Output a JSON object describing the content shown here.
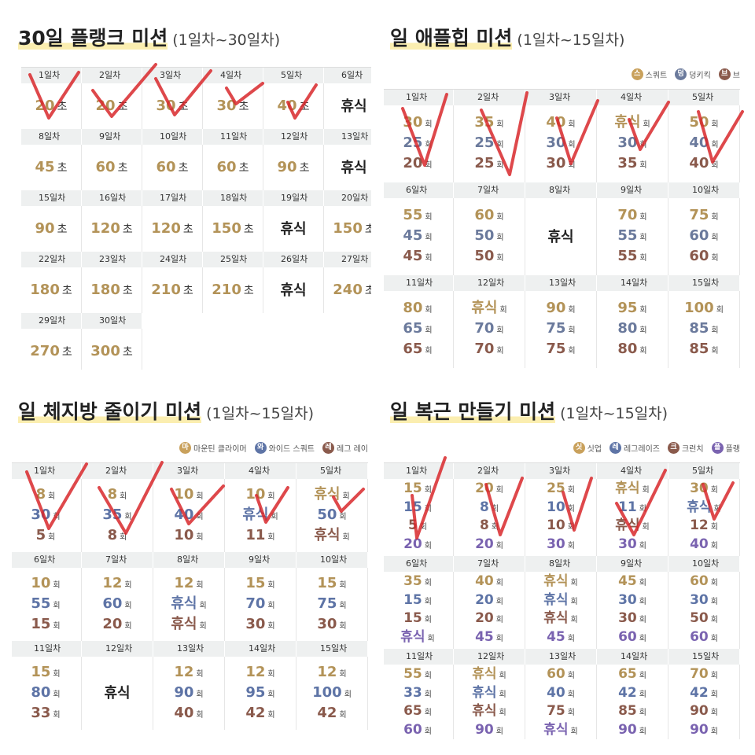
{
  "panels": [
    {
      "title": "30일 플랭크 미션",
      "subtitle": "(1일차~30일차)",
      "unit": "초",
      "row_colors": [
        "#b39358"
      ],
      "days": [
        {
          "label": "1일차",
          "values": [
            20
          ]
        },
        {
          "label": "2일차",
          "values": [
            20
          ]
        },
        {
          "label": "3일차",
          "values": [
            30
          ]
        },
        {
          "label": "4일차",
          "values": [
            30
          ]
        },
        {
          "label": "5일차",
          "values": [
            40
          ]
        },
        {
          "label": "6일차",
          "values": [
            "휴식"
          ]
        },
        {
          "label": "8일차",
          "values": [
            45
          ]
        },
        {
          "label": "9일차",
          "values": [
            60
          ]
        },
        {
          "label": "10일차",
          "values": [
            60
          ]
        },
        {
          "label": "11일차",
          "values": [
            60
          ]
        },
        {
          "label": "12일차",
          "values": [
            90
          ]
        },
        {
          "label": "13일차",
          "values": [
            "휴식"
          ]
        },
        {
          "label": "15일차",
          "values": [
            90
          ]
        },
        {
          "label": "16일차",
          "values": [
            120
          ]
        },
        {
          "label": "17일차",
          "values": [
            120
          ]
        },
        {
          "label": "18일차",
          "values": [
            150
          ]
        },
        {
          "label": "19일차",
          "values": [
            "휴식"
          ]
        },
        {
          "label": "20일차",
          "values": [
            150
          ]
        },
        {
          "label": "22일차",
          "values": [
            180
          ]
        },
        {
          "label": "23일차",
          "values": [
            180
          ]
        },
        {
          "label": "24일차",
          "values": [
            210
          ]
        },
        {
          "label": "25일차",
          "values": [
            210
          ]
        },
        {
          "label": "26일차",
          "values": [
            "휴식"
          ]
        },
        {
          "label": "27일차",
          "values": [
            240
          ]
        },
        {
          "label": "29일차",
          "values": [
            270
          ]
        },
        {
          "label": "30일차",
          "values": [
            300
          ]
        }
      ]
    },
    {
      "title": "일 애플힙 미션",
      "subtitle": "(1일차~15일차)",
      "unit": "회",
      "row_colors": [
        "#b39358",
        "#6b7a9c",
        "#8a5a4c"
      ],
      "legend": [
        {
          "badge": "스",
          "name": "스쿼트",
          "color": "#c9a15c"
        },
        {
          "badge": "덩",
          "name": "덩키킥",
          "color": "#6b7a9c"
        },
        {
          "badge": "브",
          "name": "브",
          "color": "#8a5a4c"
        }
      ],
      "days": [
        {
          "label": "1일차",
          "values": [
            30,
            25,
            20
          ]
        },
        {
          "label": "2일차",
          "values": [
            35,
            25,
            25
          ]
        },
        {
          "label": "3일차",
          "values": [
            40,
            30,
            30
          ]
        },
        {
          "label": "4일차",
          "values": [
            "휴식",
            30,
            35
          ]
        },
        {
          "label": "5일차",
          "values": [
            50,
            40,
            40
          ]
        },
        {
          "label": "6일차",
          "values": [
            55,
            45,
            45
          ]
        },
        {
          "label": "7일차",
          "values": [
            60,
            50,
            50
          ]
        },
        {
          "label": "8일차",
          "values": [
            "휴식"
          ]
        },
        {
          "label": "9일차",
          "values": [
            70,
            55,
            55
          ]
        },
        {
          "label": "10일차",
          "values": [
            75,
            60,
            60
          ]
        },
        {
          "label": "11일차",
          "values": [
            80,
            65,
            65
          ]
        },
        {
          "label": "12일차",
          "values": [
            "휴식",
            70,
            70
          ]
        },
        {
          "label": "13일차",
          "values": [
            90,
            75,
            75
          ]
        },
        {
          "label": "14일차",
          "values": [
            95,
            80,
            80
          ]
        },
        {
          "label": "15일차",
          "values": [
            100,
            85,
            85
          ]
        }
      ]
    },
    {
      "title": "일 체지방 줄이기 미션",
      "subtitle": "(1일차~15일차)",
      "unit": "회",
      "row_colors": [
        "#b39358",
        "#5e74a6",
        "#8a5a4c"
      ],
      "legend": [
        {
          "badge": "마",
          "name": "마운틴 클라이머",
          "color": "#c9a15c"
        },
        {
          "badge": "와",
          "name": "와이드 스쿼트",
          "color": "#5e74a6"
        },
        {
          "badge": "레",
          "name": "레그 레이",
          "color": "#8a5a4c"
        }
      ],
      "days": [
        {
          "label": "1일차",
          "values": [
            8,
            30,
            5
          ]
        },
        {
          "label": "2일차",
          "values": [
            8,
            35,
            8
          ]
        },
        {
          "label": "3일차",
          "values": [
            10,
            40,
            10
          ]
        },
        {
          "label": "4일차",
          "values": [
            10,
            "휴식",
            11
          ]
        },
        {
          "label": "5일차",
          "values": [
            "휴식",
            50,
            "휴식"
          ]
        },
        {
          "label": "6일차",
          "values": [
            10,
            55,
            15
          ]
        },
        {
          "label": "7일차",
          "values": [
            12,
            60,
            20
          ]
        },
        {
          "label": "8일차",
          "values": [
            12,
            "휴식",
            "휴식"
          ]
        },
        {
          "label": "9일차",
          "values": [
            15,
            70,
            30
          ]
        },
        {
          "label": "10일차",
          "values": [
            15,
            75,
            30
          ]
        },
        {
          "label": "11일차",
          "values": [
            15,
            80,
            33
          ]
        },
        {
          "label": "12일차",
          "values": [
            "휴식"
          ]
        },
        {
          "label": "13일차",
          "values": [
            12,
            90,
            40
          ]
        },
        {
          "label": "14일차",
          "values": [
            12,
            95,
            42
          ]
        },
        {
          "label": "15일차",
          "values": [
            12,
            100,
            42
          ]
        }
      ]
    },
    {
      "title": "일 복근 만들기 미션",
      "subtitle": "(1일차~15일차)",
      "unit": "회",
      "row_colors": [
        "#b39358",
        "#5e74a6",
        "#8a5a4c",
        "#7a63b0"
      ],
      "legend": [
        {
          "badge": "싯",
          "name": "싯업",
          "color": "#c9a15c"
        },
        {
          "badge": "레",
          "name": "레그레이즈",
          "color": "#5e74a6"
        },
        {
          "badge": "크",
          "name": "크런치",
          "color": "#8a5a4c"
        },
        {
          "badge": "플",
          "name": "플랭",
          "color": "#7a63b0"
        }
      ],
      "days": [
        {
          "label": "1일차",
          "values": [
            15,
            15,
            5,
            20
          ]
        },
        {
          "label": "2일차",
          "values": [
            20,
            8,
            8,
            20
          ]
        },
        {
          "label": "3일차",
          "values": [
            25,
            10,
            10,
            30
          ]
        },
        {
          "label": "4일차",
          "values": [
            "휴식",
            11,
            "휴식",
            30
          ]
        },
        {
          "label": "5일차",
          "values": [
            30,
            "휴식",
            12,
            40
          ]
        },
        {
          "label": "6일차",
          "values": [
            35,
            15,
            15,
            "휴식"
          ]
        },
        {
          "label": "7일차",
          "values": [
            40,
            20,
            20,
            45
          ]
        },
        {
          "label": "8일차",
          "values": [
            "휴식",
            "휴식",
            "휴식",
            45
          ]
        },
        {
          "label": "9일차",
          "values": [
            45,
            30,
            30,
            60
          ]
        },
        {
          "label": "10일차",
          "values": [
            60,
            30,
            50,
            60
          ]
        },
        {
          "label": "11일차",
          "values": [
            55,
            33,
            65,
            60
          ]
        },
        {
          "label": "12일차",
          "values": [
            "휴식",
            "휴식",
            "휴식",
            90
          ]
        },
        {
          "label": "13일차",
          "values": [
            60,
            40,
            75,
            "휴식"
          ]
        },
        {
          "label": "14일차",
          "values": [
            65,
            42,
            85,
            90
          ]
        },
        {
          "label": "15일차",
          "values": [
            70,
            42,
            90,
            90
          ]
        }
      ]
    }
  ]
}
